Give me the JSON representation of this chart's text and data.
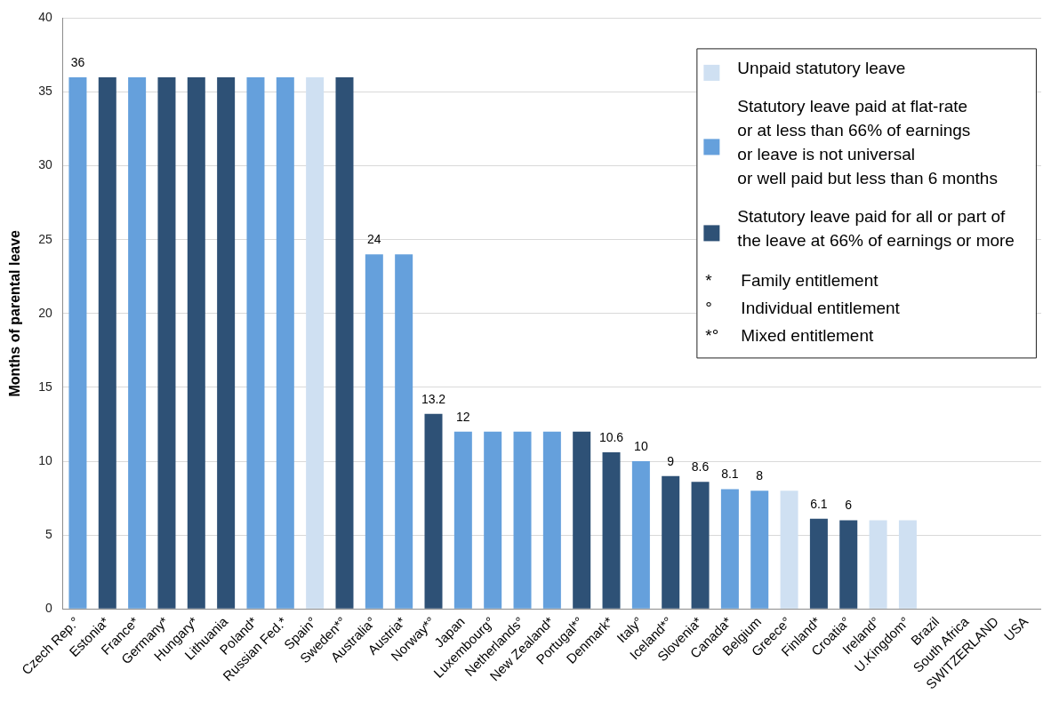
{
  "chart_data": {
    "type": "bar",
    "categories": [
      "Czech Rep.°",
      "Estonia*",
      "France*",
      "Germany*",
      "Hungary*",
      "Lithuania",
      "Poland*",
      "Russian Fed.*",
      "Spain°",
      "Sweden*°",
      "Australia°",
      "Austria*",
      "Norway*°",
      "Japan",
      "Luxembourg°",
      "Netherlands°",
      "New Zealand*",
      "Portugal*°",
      "Denmark*",
      "Italy°",
      "Iceland*°",
      "Slovenia*",
      "Canada*",
      "Belgium",
      "Greece°",
      "Finland*",
      "Croatia°",
      "Ireland°",
      "U.Kingdom°",
      "Brazil",
      "South Africa",
      "SWITZERLAND",
      "USA"
    ],
    "series": [
      {
        "name": "Unpaid statutory leave",
        "color": "#cfe0f2",
        "values": [
          null,
          null,
          null,
          null,
          null,
          null,
          null,
          null,
          36,
          null,
          null,
          null,
          null,
          null,
          null,
          null,
          null,
          null,
          null,
          null,
          null,
          null,
          null,
          null,
          8,
          null,
          null,
          6,
          6,
          null,
          null,
          null,
          null
        ]
      },
      {
        "name": "Statutory leave paid at flat-rate\nor at less than 66% of earnings\nor leave is not universal\nor well paid but less than 6 months",
        "color": "#65a0dc",
        "values": [
          36,
          null,
          36,
          null,
          null,
          null,
          36,
          36,
          null,
          null,
          24,
          24,
          null,
          12,
          12,
          12,
          12,
          null,
          null,
          10,
          null,
          null,
          8.1,
          8,
          null,
          null,
          null,
          null,
          null,
          null,
          null,
          null,
          null
        ],
        "value_labels": [
          "36",
          null,
          null,
          null,
          null,
          null,
          null,
          null,
          null,
          null,
          "24",
          null,
          null,
          "12",
          null,
          null,
          null,
          null,
          null,
          "10",
          null,
          null,
          "8.1",
          "8",
          null,
          null,
          null,
          null,
          null,
          null,
          null,
          null,
          null
        ]
      },
      {
        "name": "Statutory leave paid for all or part of\nthe leave at 66% of earnings or more",
        "color": "#2e5176",
        "values": [
          null,
          36,
          null,
          36,
          36,
          36,
          null,
          null,
          null,
          36,
          null,
          null,
          13.2,
          null,
          null,
          null,
          null,
          12,
          10.6,
          null,
          9,
          8.6,
          null,
          null,
          null,
          6.1,
          6,
          null,
          null,
          null,
          null,
          null,
          null
        ],
        "value_labels": [
          null,
          null,
          null,
          null,
          null,
          null,
          null,
          null,
          null,
          null,
          null,
          null,
          "13.2",
          null,
          null,
          null,
          null,
          null,
          "10.6",
          null,
          "9",
          "8.6",
          null,
          null,
          null,
          "6.1",
          "6",
          null,
          null,
          null,
          null,
          null,
          null
        ]
      }
    ],
    "ylabel": "Months of parental leave",
    "ylim": [
      0,
      40
    ],
    "yticks": [
      0,
      5,
      10,
      15,
      20,
      25,
      30,
      35,
      40
    ],
    "grid": "y",
    "legend": "top right",
    "annotations": [
      "* Family entitlement",
      "° Individual entitlement",
      "*° Mixed entitlement"
    ]
  }
}
